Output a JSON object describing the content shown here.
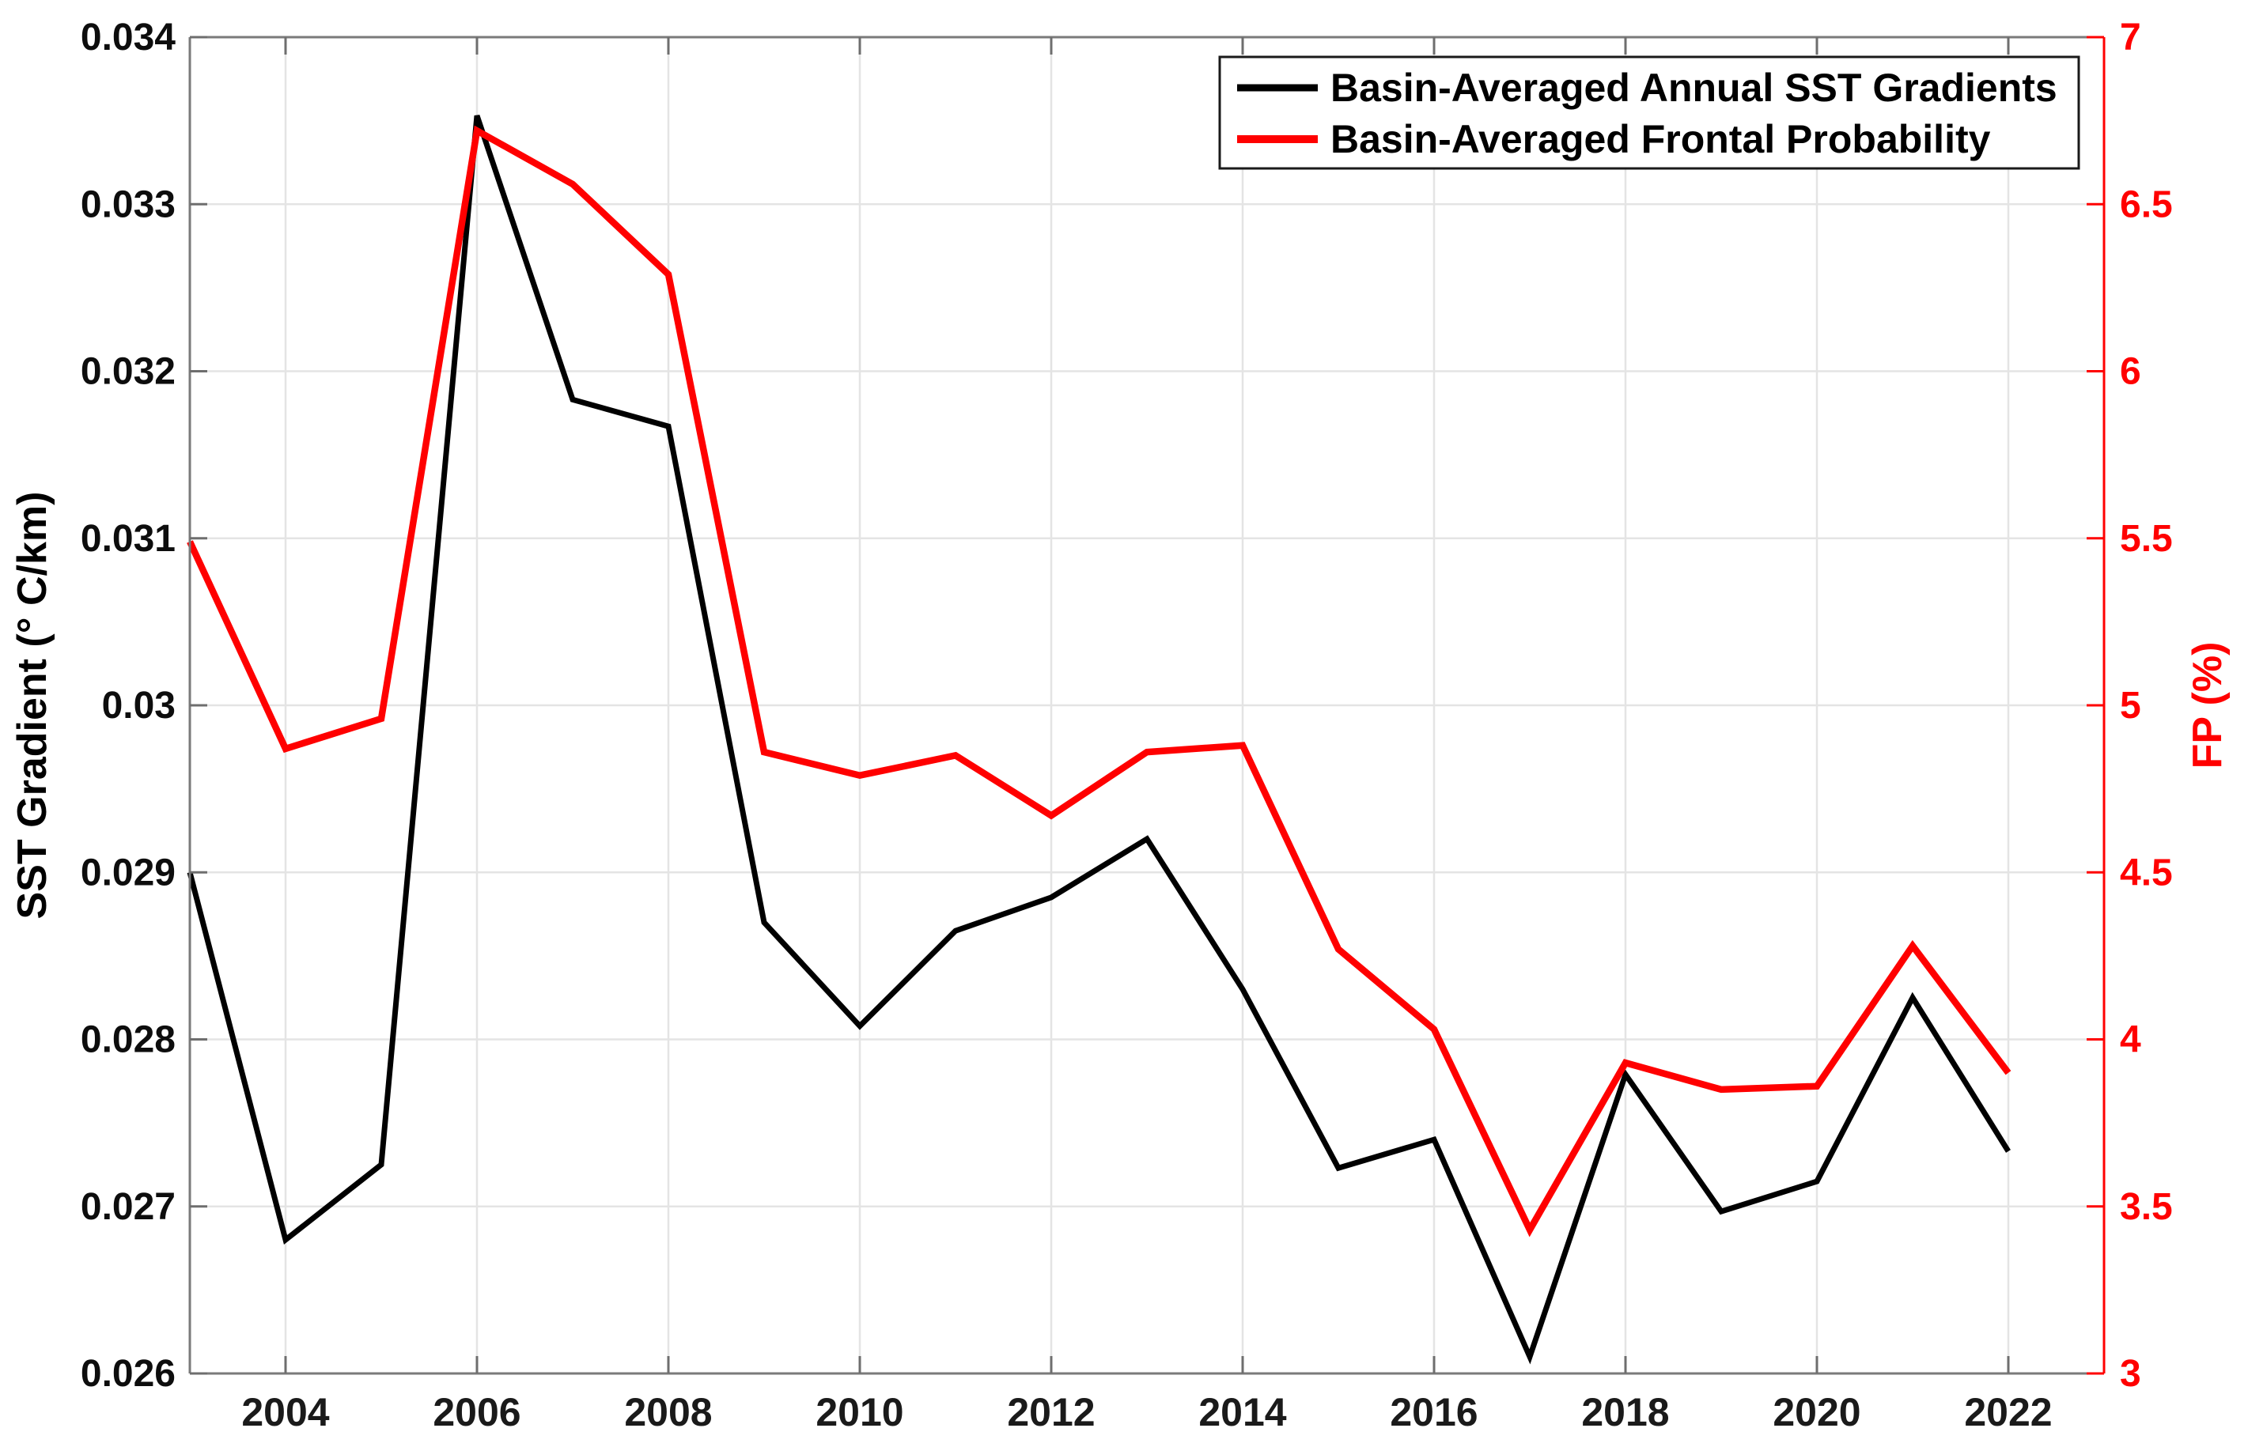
{
  "chart_data": {
    "type": "line",
    "title": "",
    "xlabel": "",
    "ylabel_left": "SST Gradient (° C/km)",
    "ylabel_right": "FP (%)",
    "grid": true,
    "legend_position": "top-right",
    "x": [
      2003,
      2004,
      2005,
      2006,
      2007,
      2008,
      2009,
      2010,
      2011,
      2012,
      2013,
      2014,
      2015,
      2016,
      2017,
      2018,
      2019,
      2020,
      2021,
      2022
    ],
    "series": [
      {
        "name": "Basin-Averaged Annual SST Gradients",
        "axis": "left",
        "color": "#000000",
        "values": [
          0.029,
          0.0268,
          0.02725,
          0.03353,
          0.03183,
          0.03167,
          0.0287,
          0.02808,
          0.02865,
          0.02885,
          0.0292,
          0.0283,
          0.02723,
          0.0274,
          0.0261,
          0.02779,
          0.02697,
          0.02715,
          0.02825,
          0.02733
        ]
      },
      {
        "name": "Basin-Averaged Frontal Probability",
        "axis": "right",
        "color": "#ff0000",
        "values": [
          5.49,
          4.87,
          4.96,
          6.72,
          6.56,
          6.29,
          4.86,
          4.79,
          4.85,
          4.67,
          4.86,
          4.88,
          4.27,
          4.03,
          3.43,
          3.93,
          3.85,
          3.86,
          4.28,
          3.9
        ]
      }
    ],
    "x_axis": {
      "min": 2003,
      "max": 2023,
      "tick_values": [
        2004,
        2006,
        2008,
        2010,
        2012,
        2014,
        2016,
        2018,
        2020,
        2022
      ],
      "tick_labels": [
        "2004",
        "2006",
        "2008",
        "2010",
        "2012",
        "2014",
        "2016",
        "2018",
        "2020",
        "2022"
      ]
    },
    "left_axis": {
      "min": 0.026,
      "max": 0.034,
      "tick_values": [
        0.026,
        0.027,
        0.028,
        0.029,
        0.03,
        0.031,
        0.032,
        0.033,
        0.034
      ],
      "tick_labels": [
        "0.026",
        "0.027",
        "0.028",
        "0.029",
        "0.03",
        "0.031",
        "0.032",
        "0.033",
        "0.034"
      ]
    },
    "right_axis": {
      "min": 3,
      "max": 7,
      "tick_values": [
        3,
        3.5,
        4,
        4.5,
        5,
        5.5,
        6,
        6.5,
        7
      ],
      "tick_labels": [
        "3",
        "3.5",
        "4",
        "4.5",
        "5",
        "5.5",
        "6",
        "6.5",
        "7"
      ]
    }
  },
  "colors": {
    "sst_line": "#000000",
    "fp_line": "#ff0000",
    "grid": "#e4e4e4",
    "spine": "#7a7a7a",
    "background": "#ffffff"
  }
}
